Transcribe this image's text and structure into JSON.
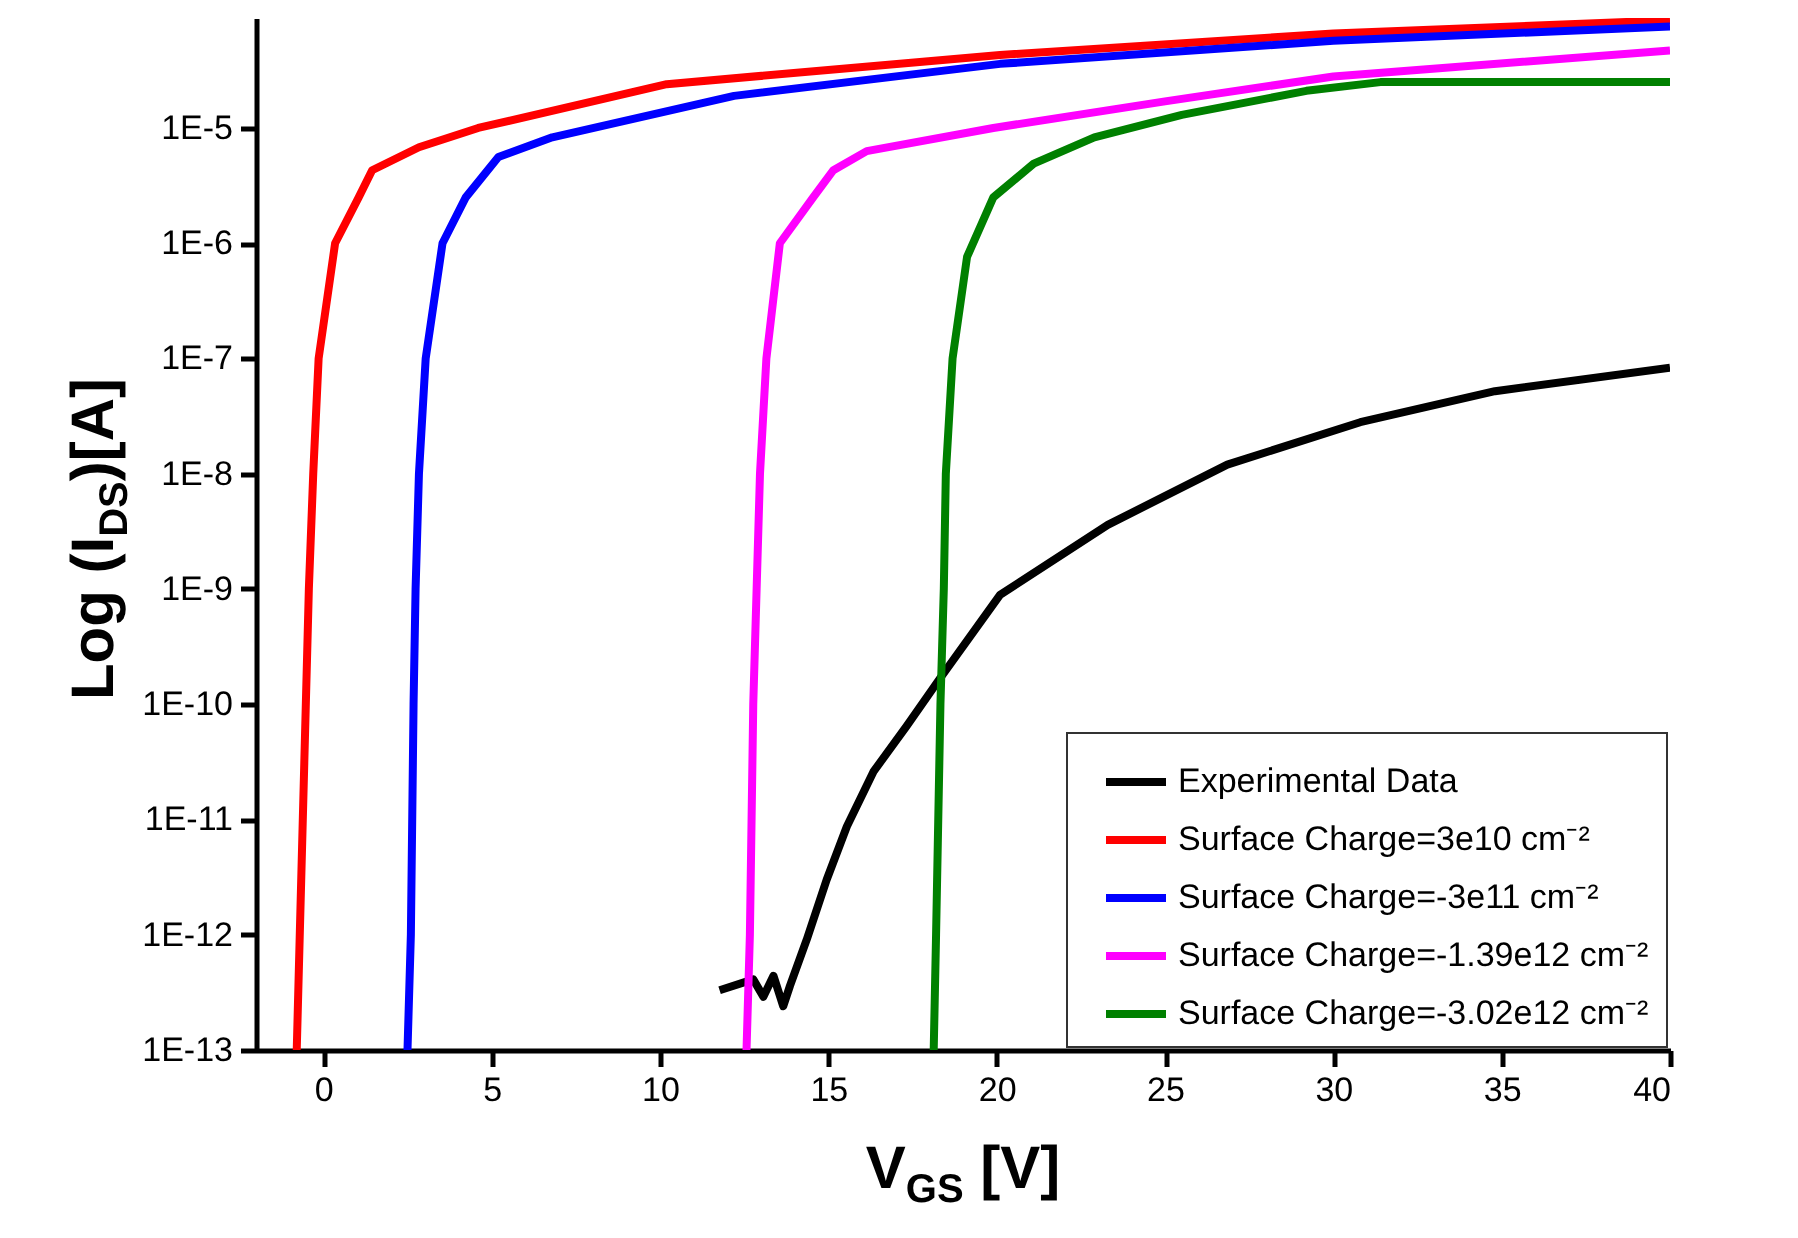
{
  "chart_data": {
    "type": "line",
    "xlabel": "V$_{GS}$ [V]",
    "ylabel": "Log (I$_{DS}$)[A]",
    "log": "y",
    "xlim": [
      -2,
      40
    ],
    "ylim": [
      1e-13,
      9e-05
    ],
    "xticks": [
      0,
      5,
      10,
      15,
      20,
      25,
      30,
      35,
      40
    ],
    "yticks": [
      {
        "value": 1e-13,
        "label": "1E-13"
      },
      {
        "value": 1e-12,
        "label": "1E-12"
      },
      {
        "value": 1e-11,
        "label": "1E-11"
      },
      {
        "value": 1e-10,
        "label": "1E-10"
      },
      {
        "value": 1e-09,
        "label": "1E-9"
      },
      {
        "value": 1e-08,
        "label": "1E-8"
      },
      {
        "value": 1e-07,
        "label": "1E-7"
      },
      {
        "value": 1e-06,
        "label": "1E-6"
      },
      {
        "value": 1e-05,
        "label": "1E-5"
      }
    ],
    "grid": false,
    "legend": "bottom right",
    "line_style": "solid",
    "marker": "none",
    "series": [
      {
        "name": "Experimental Data",
        "color": "#000000",
        "x": [
          11.77,
          12.77,
          13.07,
          13.37,
          13.66,
          13.86,
          14.36,
          14.95,
          15.55,
          16.34,
          17.33,
          18.33,
          20.1,
          23.3,
          26.85,
          30.8,
          34.8,
          40
        ],
        "values": [
          3.3e-13,
          4.1e-13,
          2.9e-13,
          4.4e-13,
          2.4e-13,
          3.6e-13,
          9.1e-13,
          3e-12,
          8.7e-12,
          2.6e-11,
          6.5e-11,
          1.7e-10,
          8.9e-10,
          3.6e-09,
          1.2e-08,
          2.8e-08,
          5.2e-08,
          8.3e-08
        ]
      },
      {
        "name": "Surface Charge=3e10 cm⁻²",
        "color": "#ff0000",
        "x": [
          -0.79,
          -0.43,
          -0.3,
          -0.14,
          0.35,
          1.05,
          1.45,
          2.84,
          4.6,
          10.2,
          20.1,
          30,
          40
        ],
        "values": [
          1e-13,
          1e-09,
          1e-08,
          1e-07,
          1e-06,
          2.5e-06,
          4.3e-06,
          6.8e-06,
          1e-05,
          2.4e-05,
          4.3e-05,
          6.6e-05,
          8.6e-05
        ]
      },
      {
        "name": "Surface Charge=-3e11 cm⁻²",
        "color": "#0000ff",
        "x": [
          2.5,
          2.6,
          2.68,
          2.74,
          2.84,
          3.04,
          3.54,
          4.23,
          5.2,
          6.8,
          12.2,
          20.1,
          30,
          40
        ],
        "values": [
          1e-13,
          1e-12,
          1e-10,
          1e-09,
          1e-08,
          1e-07,
          1e-06,
          2.5e-06,
          5.6e-06,
          8.3e-06,
          1.9e-05,
          3.6e-05,
          5.7e-05,
          7.6e-05
        ]
      },
      {
        "name": "Surface Charge=-1.39e12 cm⁻²",
        "color": "#ff00ff",
        "x": [
          12.57,
          12.67,
          12.77,
          12.87,
          12.97,
          13.16,
          13.56,
          14.55,
          15.15,
          16.14,
          19.9,
          25,
          30,
          40
        ],
        "values": [
          1e-13,
          1e-12,
          1e-10,
          1e-09,
          1e-08,
          1e-07,
          1e-06,
          2.5e-06,
          4.3e-06,
          6.3e-06,
          1e-05,
          1.7e-05,
          2.8e-05,
          4.7e-05
        ]
      },
      {
        "name": "Surface Charge=-3.02e12 cm⁻²",
        "color": "#008000",
        "x": [
          18.13,
          18.2,
          18.33,
          18.43,
          18.49,
          18.69,
          19.12,
          19.9,
          21.1,
          22.9,
          25.5,
          29.2,
          31.4,
          40
        ],
        "values": [
          1e-13,
          1e-12,
          1e-10,
          1e-09,
          1e-08,
          1e-07,
          7.6e-07,
          2.5e-06,
          4.9e-06,
          8.3e-06,
          1.3e-05,
          2.1e-05,
          2.5e-05,
          2.5e-05
        ]
      }
    ]
  }
}
